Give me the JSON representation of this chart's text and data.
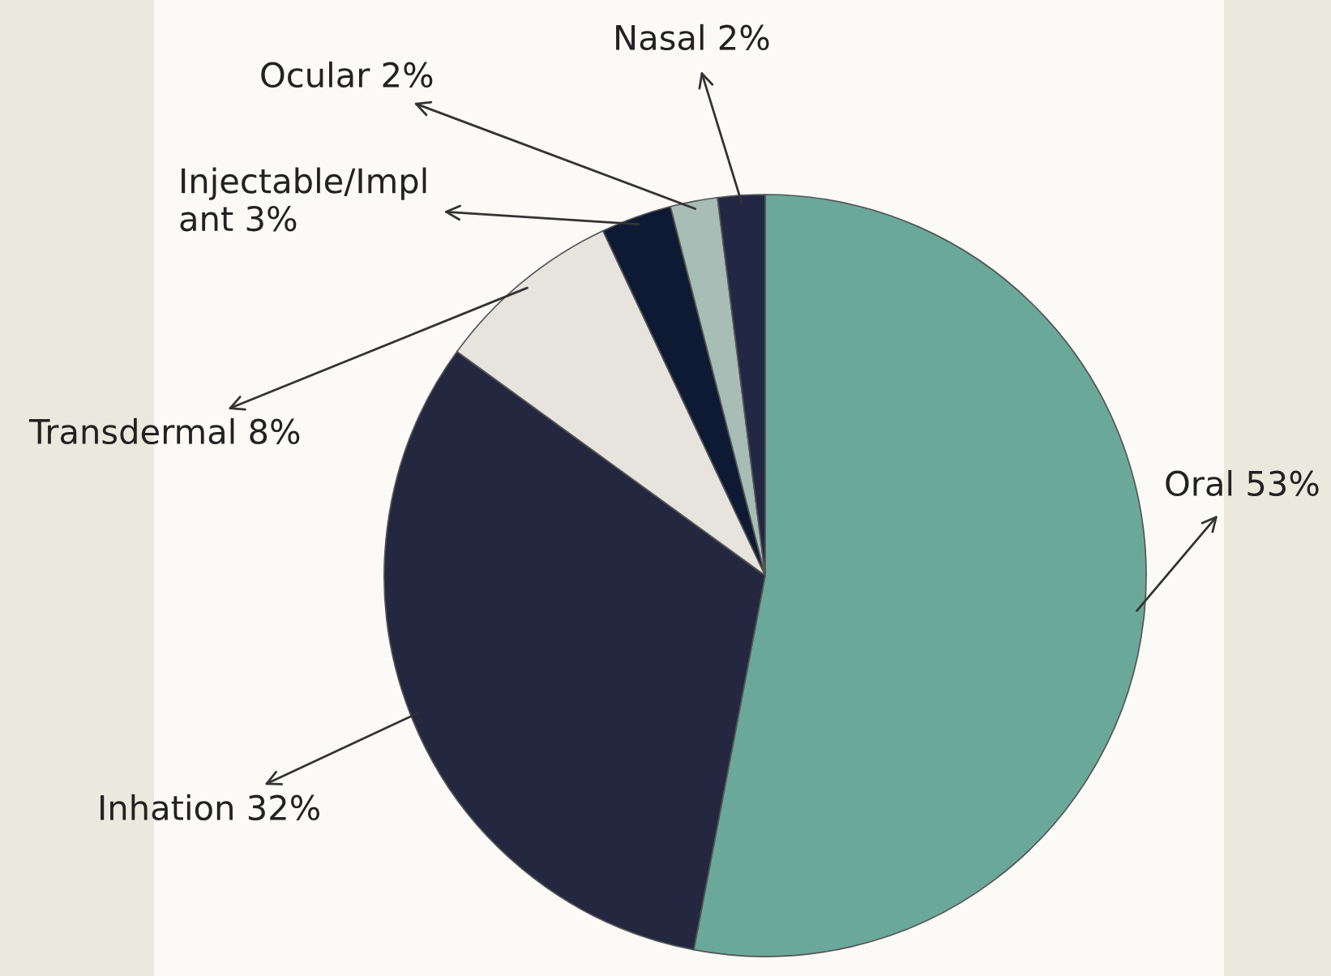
{
  "chart_data": {
    "type": "pie",
    "categories": [
      "Oral 53%",
      "Inhation 32%",
      "Transdermal 8%",
      "Injectable/Impl\nant 3%",
      "Ocular 2%",
      "Nasal 2%"
    ],
    "values": [
      53,
      32,
      8,
      3,
      2,
      2
    ],
    "colors": [
      "#6aa99a",
      "#232840",
      "#e6e4dc",
      "#0e1a33",
      "#a7bdb5",
      "#222844"
    ]
  }
}
